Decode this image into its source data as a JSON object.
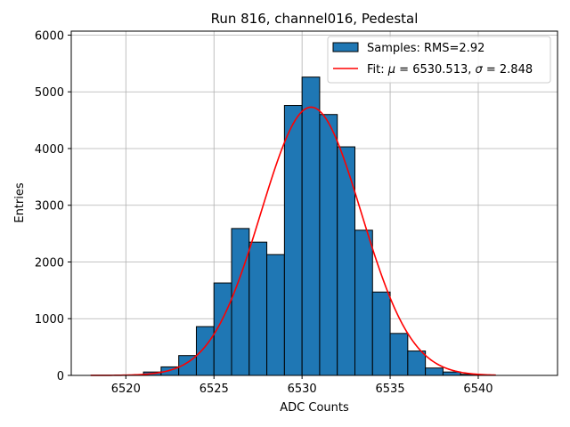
{
  "chart_data": {
    "type": "bar",
    "title": "Run 816, channel016, Pedestal",
    "xlabel": "ADC Counts",
    "ylabel": "Entries",
    "xlim": [
      6516.9,
      6544.5
    ],
    "ylim": [
      0,
      6070
    ],
    "xticks": [
      6520,
      6525,
      6530,
      6535,
      6540
    ],
    "yticks": [
      0,
      1000,
      2000,
      3000,
      4000,
      5000,
      6000
    ],
    "grid": true,
    "legend_position": "top-right",
    "histogram": {
      "name": "Samples: RMS=2.92",
      "color": "#1f77b4",
      "edge_color": "#000000",
      "bin_edges": [
        6521,
        6522,
        6523,
        6524,
        6525,
        6526,
        6527,
        6528,
        6529,
        6530,
        6531,
        6532,
        6533,
        6534,
        6535,
        6536,
        6537,
        6538,
        6539,
        6540
      ],
      "values": [
        60,
        150,
        350,
        860,
        1630,
        2590,
        2350,
        2130,
        4760,
        5260,
        4600,
        4030,
        2560,
        1470,
        740,
        430,
        130,
        60,
        20
      ]
    },
    "fit": {
      "name_prefix": "Fit: ",
      "name_mu": "μ",
      "name_mid": " = 6530.513, ",
      "name_sigma": "σ",
      "name_suffix": " = 2.848",
      "color": "#ff0000",
      "mu": 6530.513,
      "sigma": 2.848,
      "amplitude": 4730,
      "x_start": 6518,
      "x_end": 6541
    }
  }
}
